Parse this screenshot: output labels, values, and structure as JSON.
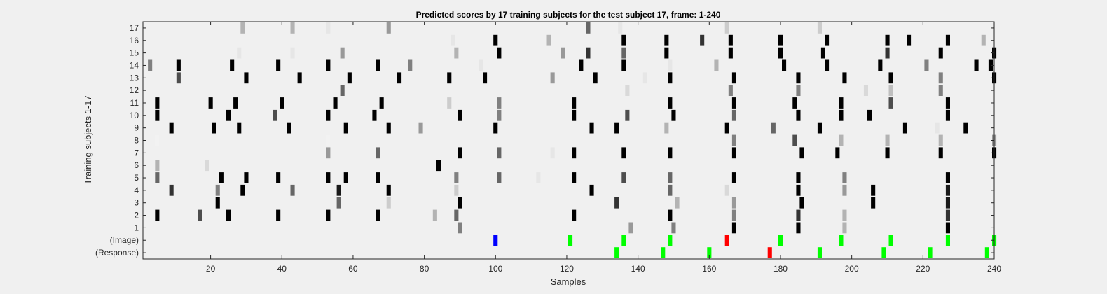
{
  "chart_data": {
    "type": "heatmap",
    "title": "Predicted scores by 17 training subjects for the test subject 17, frame: 1-240",
    "xlabel": "Samples",
    "ylabel": "Training subjects 1-17",
    "xlim": [
      1,
      240
    ],
    "xticks": [
      20,
      40,
      60,
      80,
      100,
      120,
      140,
      160,
      180,
      200,
      220,
      240
    ],
    "ytick_labels": [
      "(Response)",
      "(Image)",
      "1",
      "2",
      "3",
      "4",
      "5",
      "6",
      "7",
      "8",
      "9",
      "10",
      "11",
      "12",
      "13",
      "14",
      "15",
      "16",
      "17"
    ],
    "colormap": "gray (white = 0, black = 1)",
    "marker_colors": {
      "correct": "#00ff00",
      "incorrect": "#ff0000",
      "start": "#0000ff"
    },
    "rows": [
      {
        "label": "(Response)",
        "marks": [
          {
            "x": 134,
            "color": "#00ff00"
          },
          {
            "x": 147,
            "color": "#00ff00"
          },
          {
            "x": 160,
            "color": "#00ff00"
          },
          {
            "x": 177,
            "color": "#ff0000"
          },
          {
            "x": 191,
            "color": "#00ff00"
          },
          {
            "x": 209,
            "color": "#00ff00"
          },
          {
            "x": 222,
            "color": "#00ff00"
          },
          {
            "x": 238,
            "color": "#00ff00"
          }
        ]
      },
      {
        "label": "(Image)",
        "marks": [
          {
            "x": 100,
            "color": "#0000ff"
          },
          {
            "x": 121,
            "color": "#00ff00"
          },
          {
            "x": 136,
            "color": "#00ff00"
          },
          {
            "x": 149,
            "color": "#00ff00"
          },
          {
            "x": 165,
            "color": "#ff0000"
          },
          {
            "x": 180,
            "color": "#00ff00"
          },
          {
            "x": 197,
            "color": "#00ff00"
          },
          {
            "x": 211,
            "color": "#00ff00"
          },
          {
            "x": 227,
            "color": "#00ff00"
          },
          {
            "x": 240,
            "color": "#00ff00"
          }
        ]
      },
      {
        "label": "1",
        "cells": [
          [
            90,
            0.5
          ],
          [
            138,
            0.4
          ],
          [
            150,
            0.5
          ],
          [
            167,
            1.0
          ],
          [
            185,
            1.0
          ],
          [
            198,
            0.3
          ],
          [
            227,
            1.0
          ]
        ]
      },
      {
        "label": "2",
        "cells": [
          [
            5,
            1.0
          ],
          [
            17,
            0.7
          ],
          [
            25,
            1.0
          ],
          [
            39,
            1.0
          ],
          [
            53,
            1.0
          ],
          [
            67,
            1.0
          ],
          [
            83,
            0.3
          ],
          [
            89,
            0.6
          ],
          [
            122,
            1.0
          ],
          [
            149,
            1.0
          ],
          [
            167,
            0.5
          ],
          [
            185,
            0.8
          ],
          [
            198,
            0.3
          ],
          [
            227,
            0.8
          ]
        ]
      },
      {
        "label": "3",
        "cells": [
          [
            22,
            1.0
          ],
          [
            56,
            0.6
          ],
          [
            70,
            0.2
          ],
          [
            90,
            1.0
          ],
          [
            134,
            0.8
          ],
          [
            151,
            0.3
          ],
          [
            167,
            0.4
          ],
          [
            186,
            1.0
          ],
          [
            206,
            1.0
          ],
          [
            227,
            0.9
          ]
        ]
      },
      {
        "label": "4",
        "cells": [
          [
            9,
            0.8
          ],
          [
            22,
            0.5
          ],
          [
            29,
            1.0
          ],
          [
            43,
            0.6
          ],
          [
            56,
            0.9
          ],
          [
            70,
            1.0
          ],
          [
            89,
            0.2
          ],
          [
            127,
            1.0
          ],
          [
            149,
            0.6
          ],
          [
            165,
            0.15
          ],
          [
            185,
            1.0
          ],
          [
            198,
            0.4
          ],
          [
            206,
            1.0
          ],
          [
            227,
            0.9
          ]
        ]
      },
      {
        "label": "5",
        "cells": [
          [
            5,
            0.6
          ],
          [
            23,
            1.0
          ],
          [
            30,
            1.0
          ],
          [
            39,
            1.0
          ],
          [
            53,
            1.0
          ],
          [
            58,
            1.0
          ],
          [
            67,
            1.0
          ],
          [
            89,
            0.5
          ],
          [
            101,
            0.6
          ],
          [
            112,
            0.1
          ],
          [
            122,
            1.0
          ],
          [
            136,
            0.7
          ],
          [
            149,
            0.6
          ],
          [
            167,
            1.0
          ],
          [
            185,
            1.0
          ],
          [
            198,
            0.5
          ],
          [
            227,
            1.0
          ]
        ]
      },
      {
        "label": "6",
        "cells": [
          [
            5,
            0.3
          ],
          [
            19,
            0.15
          ],
          [
            84,
            1.0
          ]
        ]
      },
      {
        "label": "7",
        "cells": [
          [
            53,
            0.4
          ],
          [
            67,
            0.6
          ],
          [
            90,
            1.0
          ],
          [
            101,
            0.6
          ],
          [
            116,
            0.1
          ],
          [
            122,
            1.0
          ],
          [
            136,
            1.0
          ],
          [
            149,
            1.0
          ],
          [
            167,
            1.0
          ],
          [
            186,
            1.0
          ],
          [
            196,
            1.0
          ],
          [
            210,
            1.0
          ],
          [
            225,
            1.0
          ],
          [
            240,
            1.0
          ]
        ]
      },
      {
        "label": "8",
        "cells": [
          [
            5,
            0.05
          ],
          [
            53,
            0.05
          ],
          [
            167,
            0.5
          ],
          [
            184,
            0.7
          ],
          [
            197,
            0.3
          ],
          [
            210,
            0.3
          ],
          [
            225,
            0.3
          ],
          [
            240,
            0.4
          ]
        ]
      },
      {
        "label": "9",
        "cells": [
          [
            9,
            1.0
          ],
          [
            21,
            1.0
          ],
          [
            28,
            1.0
          ],
          [
            42,
            1.0
          ],
          [
            58,
            1.0
          ],
          [
            70,
            1.0
          ],
          [
            79,
            0.4
          ],
          [
            100,
            1.0
          ],
          [
            127,
            1.0
          ],
          [
            134,
            1.0
          ],
          [
            148,
            0.3
          ],
          [
            165,
            1.0
          ],
          [
            178,
            0.6
          ],
          [
            191,
            1.0
          ],
          [
            215,
            1.0
          ],
          [
            224,
            0.1
          ],
          [
            232,
            1.0
          ]
        ]
      },
      {
        "label": "10",
        "cells": [
          [
            5,
            1.0
          ],
          [
            25,
            1.0
          ],
          [
            38,
            0.7
          ],
          [
            53,
            1.0
          ],
          [
            66,
            1.0
          ],
          [
            90,
            1.0
          ],
          [
            101,
            0.5
          ],
          [
            122,
            1.0
          ],
          [
            137,
            0.7
          ],
          [
            150,
            1.0
          ],
          [
            167,
            0.6
          ],
          [
            185,
            1.0
          ],
          [
            197,
            1.0
          ],
          [
            205,
            1.0
          ],
          [
            227,
            1.0
          ]
        ]
      },
      {
        "label": "11",
        "cells": [
          [
            5,
            1.0
          ],
          [
            20,
            1.0
          ],
          [
            27,
            1.0
          ],
          [
            40,
            1.0
          ],
          [
            55,
            1.0
          ],
          [
            68,
            1.0
          ],
          [
            87,
            0.2
          ],
          [
            101,
            0.5
          ],
          [
            122,
            1.0
          ],
          [
            149,
            1.0
          ],
          [
            167,
            1.0
          ],
          [
            184,
            1.0
          ],
          [
            197,
            1.0
          ],
          [
            211,
            0.7
          ],
          [
            227,
            1.0
          ]
        ]
      },
      {
        "label": "12",
        "cells": [
          [
            57,
            0.6
          ],
          [
            137,
            0.15
          ],
          [
            166,
            0.5
          ],
          [
            185,
            0.5
          ],
          [
            204,
            0.15
          ],
          [
            211,
            0.25
          ],
          [
            225,
            0.5
          ]
        ]
      },
      {
        "label": "13",
        "cells": [
          [
            11,
            0.7
          ],
          [
            30,
            1.0
          ],
          [
            45,
            1.0
          ],
          [
            59,
            1.0
          ],
          [
            73,
            1.0
          ],
          [
            87,
            1.0
          ],
          [
            97,
            1.0
          ],
          [
            116,
            0.4
          ],
          [
            128,
            1.0
          ],
          [
            142,
            0.1
          ],
          [
            149,
            1.0
          ],
          [
            167,
            1.0
          ],
          [
            185,
            1.0
          ],
          [
            198,
            1.0
          ],
          [
            211,
            1.0
          ],
          [
            225,
            0.5
          ],
          [
            240,
            1.0
          ]
        ]
      },
      {
        "label": "14",
        "cells": [
          [
            3,
            0.5
          ],
          [
            11,
            1.0
          ],
          [
            26,
            1.0
          ],
          [
            39,
            1.0
          ],
          [
            53,
            1.0
          ],
          [
            67,
            1.0
          ],
          [
            76,
            0.5
          ],
          [
            96,
            0.1
          ],
          [
            124,
            1.0
          ],
          [
            136,
            1.0
          ],
          [
            149,
            0.1
          ],
          [
            162,
            0.3
          ],
          [
            181,
            1.0
          ],
          [
            193,
            1.0
          ],
          [
            208,
            1.0
          ],
          [
            221,
            0.5
          ],
          [
            235,
            1.0
          ],
          [
            239,
            1.0
          ]
        ]
      },
      {
        "label": "15",
        "cells": [
          [
            28,
            0.1
          ],
          [
            43,
            0.1
          ],
          [
            57,
            0.4
          ],
          [
            89,
            0.3
          ],
          [
            101,
            1.0
          ],
          [
            119,
            0.4
          ],
          [
            126,
            0.8
          ],
          [
            136,
            0.6
          ],
          [
            148,
            1.0
          ],
          [
            166,
            1.0
          ],
          [
            180,
            1.0
          ],
          [
            192,
            1.0
          ],
          [
            210,
            0.8
          ],
          [
            225,
            1.0
          ],
          [
            240,
            1.0
          ]
        ]
      },
      {
        "label": "16",
        "cells": [
          [
            88,
            0.1
          ],
          [
            100,
            1.0
          ],
          [
            115,
            0.3
          ],
          [
            136,
            1.0
          ],
          [
            148,
            1.0
          ],
          [
            158,
            0.8
          ],
          [
            166,
            1.0
          ],
          [
            180,
            1.0
          ],
          [
            193,
            1.0
          ],
          [
            210,
            1.0
          ],
          [
            216,
            1.0
          ],
          [
            227,
            1.0
          ],
          [
            237,
            0.3
          ]
        ]
      },
      {
        "label": "17",
        "cells": [
          [
            29,
            0.3
          ],
          [
            43,
            0.3
          ],
          [
            53,
            0.1
          ],
          [
            70,
            0.4
          ],
          [
            126,
            0.6
          ],
          [
            135,
            0.1
          ],
          [
            165,
            0.2
          ],
          [
            191,
            0.2
          ]
        ]
      }
    ]
  }
}
